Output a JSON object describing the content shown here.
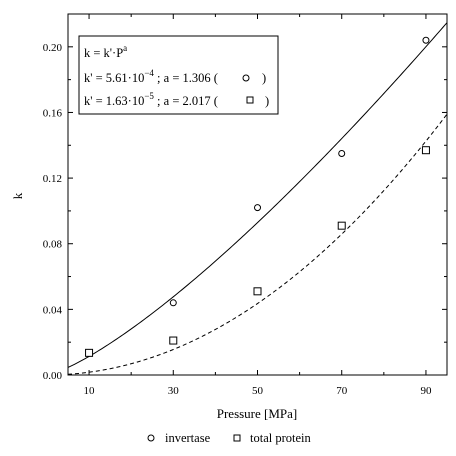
{
  "chart_data": {
    "type": "scatter",
    "xlabel": "Pressure [MPa]",
    "ylabel": "k",
    "xlim": [
      5,
      95
    ],
    "ylim": [
      0,
      0.22
    ],
    "xticks": [
      10,
      30,
      50,
      70,
      90
    ],
    "xtick_labels": [
      "10",
      "30",
      "50",
      "70",
      "90"
    ],
    "yticks": [
      0,
      0.04,
      0.08,
      0.12,
      0.16,
      0.2
    ],
    "ytick_labels": [
      "0.00",
      "0.04",
      "0.08",
      "0.12",
      "0.16",
      "0.20"
    ],
    "grid": false,
    "legend_position": "bottom",
    "series": [
      {
        "name": "invertase",
        "marker": "circle",
        "x": [
          10,
          30,
          50,
          70,
          90
        ],
        "y": [
          0.0135,
          0.044,
          0.102,
          0.135,
          0.204
        ],
        "fit": {
          "style": "solid",
          "k_prime": 0.000561,
          "a": 1.306
        }
      },
      {
        "name": "total protein",
        "marker": "square",
        "x": [
          10,
          30,
          50,
          70,
          90
        ],
        "y": [
          0.0135,
          0.021,
          0.051,
          0.091,
          0.137
        ],
        "fit": {
          "style": "dashed",
          "k_prime": 1.63e-05,
          "a": 2.017
        }
      }
    ],
    "annotation": {
      "line1_prefix": "k = k'·P",
      "line1_sup": "a",
      "line2_prefix": "k' = 5.61·10",
      "line2_sup": "−4",
      "line2_suffix": " ; a = 1.306 (",
      "line2_close": ")",
      "line3_prefix": "k' = 1.63·10",
      "line3_sup": "−5",
      "line3_suffix": " ; a = 2.017 (",
      "line3_close": ")"
    }
  }
}
